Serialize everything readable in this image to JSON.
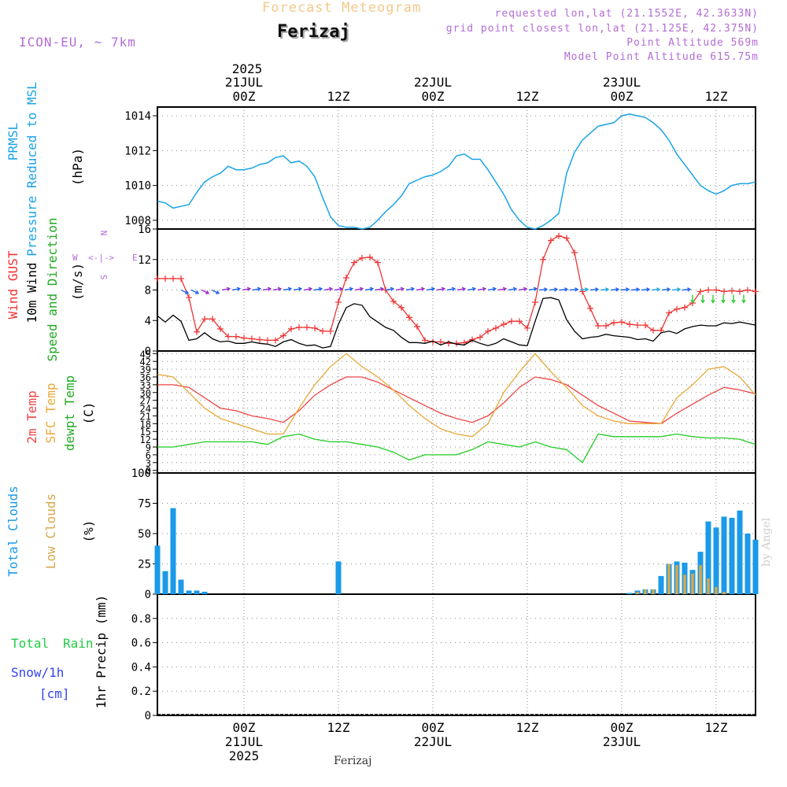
{
  "header": {
    "title": "Forecast Meteogram",
    "location": "Ferizaj",
    "model": "ICON-EU, ~ 7km",
    "info": [
      "requested lon,lat (21.1552E, 42.3633N)",
      "grid point closest lon,lat (21.125E, 42.375N)",
      "Point Altitude 569m",
      "Model Point Altitude 615.75m"
    ],
    "footer": "Ferizaj",
    "credit": "by Angel"
  },
  "colors": {
    "pressure": "#1aa3e8",
    "gust": "#ee3333",
    "wind": "#000000",
    "t2m": "#ee4444",
    "sfc": "#e8a838",
    "dewpt": "#22cc22",
    "total_clouds": "#1a9ae8",
    "low_clouds": "#d8a84a",
    "rain": "#22cc44",
    "snow": "#3344ee",
    "dirlabel": "#b26dd6",
    "grid": "#888888"
  },
  "time_axis": {
    "top_year": "2025",
    "top_labels": [
      "00Z",
      "12Z",
      "00Z",
      "12Z",
      "00Z",
      "12Z"
    ],
    "top_dates": [
      "21JUL",
      "22JUL",
      "23JUL"
    ],
    "bottom_labels": [
      "00Z",
      "12Z",
      "00Z",
      "12Z",
      "00Z",
      "12Z"
    ],
    "bottom_dates": [
      "21JUL",
      "22JUL",
      "23JUL"
    ],
    "bottom_year": "2025",
    "start_hour": -11,
    "end_hour": 65
  },
  "panel_labels": {
    "pressure": [
      "PRMSL",
      "Pressure Reduced to MSL",
      "(hPa)"
    ],
    "wind": [
      "Wind GUST",
      "10m Wind",
      "Speed and Direction",
      "(m/s)"
    ],
    "wind_dir": [
      "N",
      "S",
      "W",
      "E",
      "<-|->"
    ],
    "temp": [
      "2m Temp",
      "SFC Temp",
      "dewpt Temp",
      "(C)"
    ],
    "clouds": [
      "Total Clouds",
      "Low Clouds",
      "(%)"
    ],
    "precip": [
      "Total",
      "Rain",
      "Snow/1h",
      "[cm]",
      "1hr Precip (mm)"
    ]
  },
  "chart_data": [
    {
      "type": "line",
      "name": "pressure",
      "ylim": [
        1007.5,
        1014.5
      ],
      "yticks": [
        1008,
        1010,
        1012,
        1014
      ],
      "series": [
        {
          "name": "PRMSL",
          "x": [
            -11,
            -10,
            -9,
            -8,
            -7,
            -6,
            -5,
            -4,
            -3,
            -2,
            -1,
            0,
            1,
            2,
            3,
            4,
            5,
            6,
            7,
            8,
            9,
            10,
            11,
            12,
            13,
            14,
            15,
            16,
            17,
            18,
            19,
            20,
            21,
            22,
            23,
            24,
            25,
            26,
            27,
            28,
            29,
            30,
            31,
            32,
            33,
            34,
            35,
            36,
            37,
            38,
            39,
            40,
            41,
            42,
            43,
            44,
            45,
            46,
            47,
            48,
            49,
            50,
            51,
            52,
            53,
            54,
            55,
            56,
            57,
            58,
            59,
            60,
            61,
            62,
            63,
            64,
            65
          ],
          "values": [
            1009.1,
            1009,
            1008.7,
            1008.8,
            1008.9,
            1009.6,
            1010.2,
            1010.5,
            1010.7,
            1011.1,
            1010.9,
            1010.9,
            1011,
            1011.2,
            1011.3,
            1011.6,
            1011.7,
            1011.3,
            1011.4,
            1011.1,
            1010.5,
            1009.3,
            1008.2,
            1007.7,
            1007.6,
            1007.6,
            1007.5,
            1007.6,
            1008,
            1008.5,
            1008.9,
            1009.4,
            1010.1,
            1010.3,
            1010.5,
            1010.6,
            1010.8,
            1011.1,
            1011.7,
            1011.8,
            1011.5,
            1011.5,
            1010.9,
            1010.2,
            1009.5,
            1008.6,
            1008,
            1007.6,
            1007.5,
            1007.7,
            1008,
            1008.4,
            1010.7,
            1011.9,
            1012.6,
            1013,
            1013.4,
            1013.5,
            1013.6,
            1014,
            1014.1,
            1014,
            1013.9,
            1013.6,
            1013.2,
            1012.6,
            1011.8,
            1011.2,
            1010.6,
            1010,
            1009.7,
            1009.5,
            1009.7,
            1010,
            1010.1,
            1010.1,
            1010.2
          ]
        }
      ]
    },
    {
      "type": "line",
      "name": "wind",
      "ylim": [
        0,
        16
      ],
      "yticks": [
        0,
        4,
        8,
        12,
        16
      ],
      "series": [
        {
          "name": "Wind GUST",
          "x": [
            -11,
            -10,
            -9,
            -8,
            -7,
            -6,
            -5,
            -4,
            -3,
            -2,
            -1,
            0,
            1,
            2,
            3,
            4,
            5,
            6,
            7,
            8,
            9,
            10,
            11,
            12,
            13,
            14,
            15,
            16,
            17,
            18,
            19,
            20,
            21,
            22,
            23,
            24,
            25,
            26,
            27,
            28,
            29,
            30,
            31,
            32,
            33,
            34,
            35,
            36,
            37,
            38,
            39,
            40,
            41,
            42,
            43,
            44,
            45,
            46,
            47,
            48,
            49,
            50,
            51,
            52,
            53,
            54,
            55,
            56,
            57,
            58,
            59,
            60,
            61,
            62,
            63,
            64,
            65
          ],
          "values": [
            9.5,
            9.5,
            9.5,
            9.5,
            7,
            2.5,
            4.2,
            4.2,
            2.9,
            1.9,
            1.9,
            1.7,
            1.6,
            1.5,
            1.4,
            1.4,
            2,
            2.9,
            3.1,
            3.1,
            3.0,
            2.6,
            2.6,
            6.4,
            9.6,
            11.6,
            12.2,
            12.3,
            11.6,
            8.0,
            6.5,
            5.7,
            4.4,
            3.2,
            1.4,
            1.2,
            1.2,
            1.0,
            1.0,
            1.1,
            1.5,
            1.8,
            2.6,
            3.0,
            3.5,
            3.9,
            3.9,
            3.0,
            6.4,
            12,
            14.5,
            15.1,
            14.8,
            12.9,
            7.8,
            5.6,
            3.3,
            3.3,
            3.7,
            3.8,
            3.5,
            3.4,
            3.4,
            2.7,
            2.7,
            5,
            5.5,
            5.7,
            6.3,
            7.8,
            8,
            8,
            7.8,
            7.9,
            7.8,
            8,
            7.8
          ]
        },
        {
          "name": "10m Wind",
          "x": [
            -11,
            -10,
            -9,
            -8,
            -7,
            -6,
            -5,
            -4,
            -3,
            -2,
            -1,
            0,
            1,
            2,
            3,
            4,
            5,
            6,
            7,
            8,
            9,
            10,
            11,
            12,
            13,
            14,
            15,
            16,
            17,
            18,
            19,
            20,
            21,
            22,
            23,
            24,
            25,
            26,
            27,
            28,
            29,
            30,
            31,
            32,
            33,
            34,
            35,
            36,
            37,
            38,
            39,
            40,
            41,
            42,
            43,
            44,
            45,
            46,
            47,
            48,
            49,
            50,
            51,
            52,
            53,
            54,
            55,
            56,
            57,
            58,
            59,
            60,
            61,
            62,
            63,
            64,
            65
          ],
          "values": [
            4.6,
            3.8,
            4.7,
            3.9,
            1.4,
            1.6,
            2.4,
            1.6,
            1.2,
            1.3,
            1.0,
            1.0,
            1.2,
            1.0,
            0.9,
            0.6,
            1.2,
            1.5,
            1.0,
            0.7,
            0.8,
            0.4,
            0.6,
            3.5,
            5.7,
            6.2,
            6.0,
            4.5,
            3.8,
            3.1,
            2.7,
            1.8,
            1.1,
            1.1,
            1.0,
            1.3,
            0.8,
            1.2,
            0.9,
            0.8,
            1.4,
            1.0,
            0.7,
            1.0,
            1.6,
            1.2,
            0.8,
            0.7,
            3.9,
            6.9,
            7.0,
            6.7,
            4.1,
            2.6,
            1.6,
            1.8,
            1.9,
            2.2,
            2.0,
            1.9,
            1.8,
            1.5,
            1.6,
            1.3,
            2.4,
            2.6,
            2.3,
            2.9,
            3.2,
            3.4,
            3.3,
            3.3,
            3.7,
            3.6,
            3.8,
            3.6,
            3.4
          ]
        }
      ]
    },
    {
      "type": "line",
      "name": "temperature",
      "ylim": [
        -1,
        46
      ],
      "yticks": [
        0,
        3,
        6,
        9,
        12,
        15,
        18,
        21,
        24,
        27,
        30,
        33,
        36,
        39,
        42,
        45
      ],
      "series": [
        {
          "name": "2m Temp",
          "x": [
            -11,
            -9,
            -7,
            -5,
            -3,
            -1,
            1,
            3,
            5,
            7,
            9,
            11,
            13,
            15,
            17,
            19,
            21,
            23,
            25,
            27,
            29,
            31,
            33,
            35,
            37,
            39,
            41,
            43,
            45,
            47,
            49,
            51,
            53,
            55,
            57,
            59,
            61,
            63,
            65
          ],
          "values": [
            33,
            33,
            32,
            28,
            24,
            23,
            21,
            20,
            18.5,
            23,
            29,
            33,
            36,
            36,
            34,
            31,
            28,
            25,
            22,
            20,
            18.5,
            21,
            26,
            32,
            36,
            35,
            33,
            29,
            25,
            22,
            19,
            18.5,
            18,
            22,
            25.5,
            29,
            32,
            31,
            29.5
          ]
        },
        {
          "name": "SFC Temp",
          "x": [
            -11,
            -9,
            -7,
            -5,
            -3,
            -1,
            1,
            3,
            5,
            7,
            9,
            11,
            13,
            15,
            17,
            19,
            21,
            23,
            25,
            27,
            29,
            31,
            33,
            35,
            37,
            39,
            41,
            43,
            45,
            47,
            49,
            51,
            53,
            55,
            57,
            59,
            61,
            63,
            65
          ],
          "values": [
            37,
            36,
            30,
            24,
            20,
            18,
            16,
            14,
            14,
            24,
            33,
            40,
            45,
            40,
            36,
            31,
            25,
            20,
            16,
            14,
            13,
            18,
            30,
            38,
            45,
            38,
            32,
            25,
            21,
            19,
            18,
            18,
            18,
            28,
            33,
            39,
            40,
            36,
            29
          ]
        },
        {
          "name": "dewpt Temp",
          "x": [
            -11,
            -9,
            -7,
            -5,
            -3,
            -1,
            1,
            3,
            5,
            7,
            9,
            11,
            13,
            15,
            17,
            19,
            21,
            23,
            25,
            27,
            29,
            31,
            33,
            35,
            37,
            39,
            41,
            43,
            45,
            47,
            49,
            51,
            53,
            55,
            57,
            59,
            61,
            63,
            65
          ],
          "values": [
            9,
            9,
            10,
            11,
            11,
            11,
            11,
            10,
            13,
            14,
            12,
            11,
            11,
            10,
            9,
            7,
            4,
            6,
            6,
            6,
            8,
            11,
            10,
            9,
            11,
            9,
            8,
            3,
            14,
            13,
            13,
            13,
            13,
            14,
            13,
            12.5,
            12.5,
            12,
            10
          ]
        }
      ]
    },
    {
      "type": "bar",
      "name": "clouds",
      "ylim": [
        0,
        100
      ],
      "yticks": [
        0,
        25,
        50,
        75,
        100
      ],
      "series": [
        {
          "name": "Total Clouds",
          "x": [
            -11,
            -10,
            -9,
            -8,
            -7,
            -6,
            -5,
            1,
            12,
            48,
            49,
            50,
            51,
            52,
            53,
            54,
            55,
            56,
            57,
            58,
            59,
            60,
            61,
            62,
            63,
            64,
            65
          ],
          "values": [
            40,
            19,
            71,
            12,
            3,
            3,
            2,
            0,
            27,
            0,
            1,
            3,
            4,
            4,
            15,
            25,
            27,
            26,
            20,
            35,
            60,
            55,
            64,
            63,
            69,
            50,
            45
          ]
        },
        {
          "name": "Low Clouds",
          "x": [
            49,
            50,
            51,
            52,
            53,
            54,
            55,
            56,
            57,
            58,
            59,
            60,
            61,
            62,
            63,
            64,
            65
          ],
          "values": [
            0,
            2,
            4,
            4,
            0,
            25,
            24,
            16,
            17,
            24,
            13,
            6,
            2,
            0,
            0,
            0,
            0
          ]
        }
      ]
    },
    {
      "type": "line",
      "name": "precipitation",
      "ylim": [
        0,
        1
      ],
      "yticks": [
        0,
        0.2,
        0.4,
        0.6,
        0.8
      ],
      "series": [
        {
          "name": "Total Rain",
          "x": [
            -11,
            65
          ],
          "values": [
            0,
            0
          ]
        },
        {
          "name": "Snow/1h",
          "x": [
            -11,
            65
          ],
          "values": [
            0,
            0
          ]
        }
      ]
    }
  ]
}
